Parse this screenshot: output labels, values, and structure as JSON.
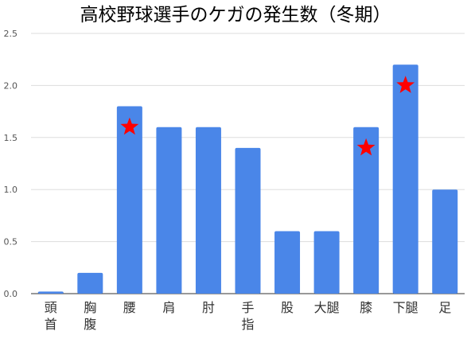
{
  "chart_data": {
    "type": "bar",
    "title": "高校野球選手のケガの発生数（冬期）",
    "xlabel": "",
    "ylabel": "",
    "ylim": [
      0,
      2.5
    ],
    "yticks": [
      "0.0",
      "0.5",
      "1.0",
      "1.5",
      "2.0",
      "2.5"
    ],
    "grid": true,
    "categories": [
      [
        "頭",
        "首"
      ],
      [
        "胸",
        "腹"
      ],
      [
        "腰"
      ],
      [
        "肩"
      ],
      [
        "肘"
      ],
      [
        "手",
        "指"
      ],
      [
        "股"
      ],
      [
        "大腿"
      ],
      [
        "膝"
      ],
      [
        "下腿"
      ],
      [
        "足"
      ]
    ],
    "values": [
      0.02,
      0.2,
      1.8,
      1.6,
      1.6,
      1.4,
      0.6,
      0.6,
      1.6,
      2.2,
      1.0
    ],
    "highlighted_categories": [
      "腰",
      "膝",
      "下腿"
    ],
    "colors": {
      "bar": "#4a86e8",
      "grid": "#dddddd",
      "star": "#ff0000"
    }
  }
}
